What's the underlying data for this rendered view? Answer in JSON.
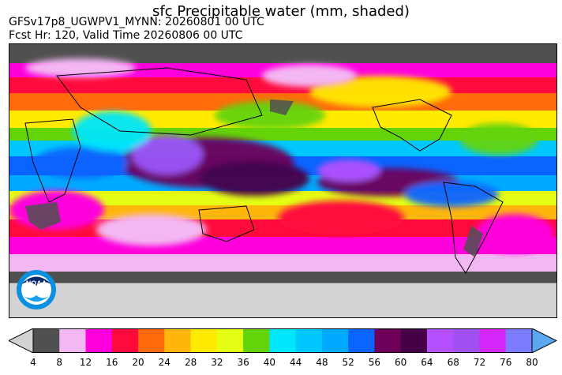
{
  "title": "sfc Precipitable water (mm, shaded)",
  "subtitle_line1": "GFSv17p8_UGWPV1_MYNN: 20260801 00 UTC",
  "subtitle_line2": "Fcst Hr: 120, Valid Time 20260806 00 UTC",
  "logo": {
    "text": "NOAA",
    "icon": "noaa-logo"
  },
  "colorbar": {
    "ticks": [
      "4",
      "8",
      "12",
      "16",
      "20",
      "24",
      "28",
      "32",
      "36",
      "40",
      "44",
      "48",
      "52",
      "56",
      "60",
      "64",
      "68",
      "72",
      "76",
      "80"
    ],
    "under_color": "#d3d3d3",
    "over_color": "#5aa8f0",
    "colors": [
      "#505050",
      "#f3b8f3",
      "#ff00dd",
      "#ff0a3c",
      "#ff6a0a",
      "#ffb60a",
      "#ffea00",
      "#e4ff14",
      "#64d40a",
      "#00e6fa",
      "#00c8ff",
      "#00aaff",
      "#0a64ff",
      "#6e005a",
      "#460046",
      "#b450ff",
      "#a050f0",
      "#d428fa",
      "#7b7bff"
    ]
  },
  "map": {
    "land_color": "#d3d3d3",
    "dry_color": "#505050"
  }
}
